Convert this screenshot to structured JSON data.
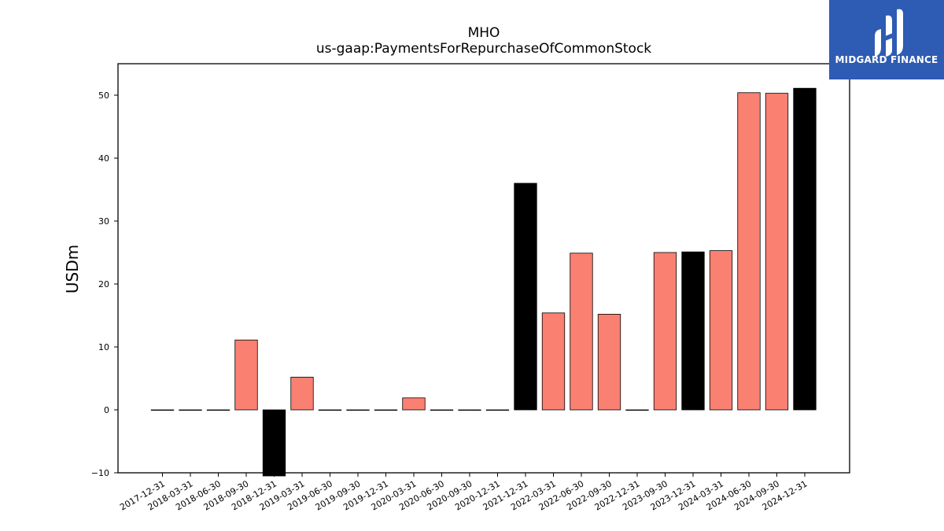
{
  "chart_data": {
    "type": "bar",
    "title": "MHO",
    "subtitle": "us-gaap:PaymentsForRepurchaseOfCommonStock",
    "xlabel": "",
    "ylabel": "USDm",
    "ylim": [
      -10,
      55
    ],
    "yticks": [
      -10,
      0,
      10,
      20,
      30,
      40,
      50
    ],
    "grid": false,
    "categories": [
      "2017-12-31",
      "2018-03-31",
      "2018-06-30",
      "2018-09-30",
      "2018-12-31",
      "2019-03-31",
      "2019-06-30",
      "2019-09-30",
      "2019-12-31",
      "2020-03-31",
      "2020-06-30",
      "2020-09-30",
      "2020-12-31",
      "2021-12-31",
      "2022-03-31",
      "2022-06-30",
      "2022-09-30",
      "2022-12-31",
      "2023-09-30",
      "2023-12-31",
      "2024-03-31",
      "2024-06-30",
      "2024-09-30",
      "2024-12-31"
    ],
    "values": [
      0,
      0,
      0,
      11.1,
      -10.5,
      5.2,
      0,
      0,
      0,
      1.9,
      0,
      0,
      0,
      36.0,
      15.4,
      24.9,
      15.2,
      0,
      25.0,
      25.1,
      25.3,
      50.4,
      50.3,
      51.1
    ],
    "colors": [
      "#fa8072",
      "#fa8072",
      "#fa8072",
      "#fa8072",
      "#000000",
      "#fa8072",
      "#fa8072",
      "#fa8072",
      "#fa8072",
      "#fa8072",
      "#fa8072",
      "#fa8072",
      "#fa8072",
      "#000000",
      "#fa8072",
      "#fa8072",
      "#fa8072",
      "#fa8072",
      "#fa8072",
      "#000000",
      "#fa8072",
      "#fa8072",
      "#fa8072",
      "#000000"
    ]
  },
  "logo": {
    "text": "MIDGARD FINANCE",
    "background": "#2e5bb3"
  }
}
